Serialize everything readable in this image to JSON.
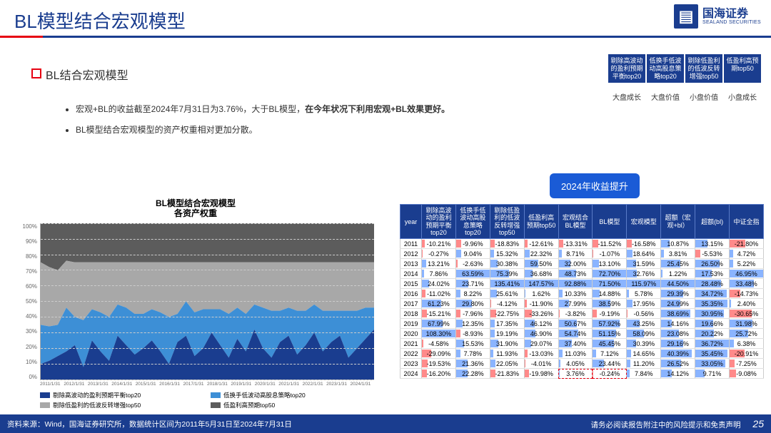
{
  "title": "BL模型结合宏观模型",
  "logo": {
    "cn": "国海证券",
    "en": "SEALAND SECURITIES",
    "icon": "卐"
  },
  "section_heading": "BL结合宏观模型",
  "bullets": [
    {
      "pre": "宏观+BL的收益截至2024年7月31日为3.76%，大于BL模型，",
      "bold": "在今年状况下利用宏观+BL效果更好。"
    },
    {
      "pre": "BL模型结合宏观模型的资产权重相对更加分散。",
      "bold": ""
    }
  ],
  "top_boxes": [
    "剔除高波动的盈利预期平衡top20",
    "低换手低波动高股息策略top20",
    "剔除低盈利的低波反转增强top50",
    "低盈利高预期top50"
  ],
  "top_labels": [
    "大盘成长",
    "大盘价值",
    "小盘价值",
    "小盘成长"
  ],
  "tag": "2024年收益提升",
  "chart": {
    "title_line1": "BL模型结合宏观模型",
    "title_line2": "各资产权重",
    "yticks": [
      "100%",
      "90%",
      "80%",
      "70%",
      "60%",
      "50%",
      "40%",
      "30%",
      "20%",
      "10%",
      "0%"
    ],
    "xticks": [
      "2011/1/31",
      "2012/1/31",
      "2013/1/31",
      "2014/1/31",
      "2015/1/31",
      "2016/1/31",
      "2017/1/31",
      "2018/1/31",
      "2019/1/31",
      "2020/1/31",
      "2021/1/31",
      "2022/1/31",
      "2023/1/31",
      "2024/1/31"
    ],
    "legend": [
      {
        "label": "剔除高波动的盈利预期平衡top20",
        "color": "#1a3d8f"
      },
      {
        "label": "低换手低波动高股息策略top20",
        "color": "#3d8fd6"
      },
      {
        "label": "剔除低盈利的低波反转增强top50",
        "color": "#a8a8a8"
      },
      {
        "label": "低盈利高预期top50",
        "color": "#5c5c5c"
      }
    ],
    "series_colors": [
      "#1a3d8f",
      "#3d8fd6",
      "#a8a8a8",
      "#5c5c5c"
    ],
    "stacks": [
      [
        10,
        25,
        40,
        25
      ],
      [
        12,
        22,
        38,
        28
      ],
      [
        15,
        20,
        35,
        30
      ],
      [
        18,
        28,
        30,
        24
      ],
      [
        22,
        18,
        35,
        25
      ],
      [
        8,
        30,
        37,
        25
      ],
      [
        25,
        20,
        30,
        25
      ],
      [
        18,
        25,
        32,
        25
      ],
      [
        12,
        28,
        35,
        25
      ],
      [
        28,
        20,
        27,
        25
      ],
      [
        22,
        24,
        29,
        25
      ],
      [
        16,
        26,
        33,
        25
      ],
      [
        20,
        22,
        33,
        25
      ],
      [
        25,
        20,
        30,
        25
      ],
      [
        18,
        25,
        32,
        25
      ],
      [
        10,
        30,
        35,
        25
      ],
      [
        24,
        18,
        33,
        25
      ],
      [
        28,
        22,
        25,
        25
      ],
      [
        15,
        28,
        32,
        25
      ],
      [
        20,
        25,
        30,
        25
      ],
      [
        30,
        15,
        30,
        25
      ],
      [
        22,
        23,
        30,
        25
      ],
      [
        14,
        28,
        33,
        25
      ],
      [
        26,
        20,
        29,
        25
      ],
      [
        18,
        24,
        33,
        25
      ],
      [
        32,
        16,
        27,
        25
      ],
      [
        20,
        26,
        29,
        25
      ],
      [
        14,
        30,
        31,
        25
      ],
      [
        24,
        20,
        31,
        25
      ],
      [
        28,
        18,
        29,
        25
      ],
      [
        16,
        28,
        31,
        25
      ],
      [
        22,
        22,
        31,
        25
      ],
      [
        30,
        18,
        27,
        25
      ],
      [
        18,
        26,
        31,
        25
      ],
      [
        24,
        20,
        31,
        25
      ],
      [
        28,
        16,
        31,
        25
      ],
      [
        14,
        30,
        31,
        25
      ],
      [
        20,
        24,
        31,
        25
      ],
      [
        26,
        20,
        29,
        25
      ],
      [
        32,
        14,
        29,
        25
      ]
    ]
  },
  "table": {
    "headers": [
      "year",
      "剔除高波动的盈利预期平衡top20",
      "低换手低波动高股息策略top20",
      "剔除低盈利的低波反转增强top50",
      "低盈利高预期top50",
      "宏观结合BL模型",
      "BL模型",
      "宏观模型",
      "超额（宏观+bl）",
      "超额(bl)",
      "中证全指"
    ],
    "rows": [
      [
        "2011",
        "-10.21%",
        "-9.96%",
        "-18.83%",
        "-12.61%",
        "-13.31%",
        "-11.52%",
        "-16.58%",
        "10.87%",
        "13.15%",
        "-21.80%"
      ],
      [
        "2012",
        "-0.27%",
        "9.04%",
        "15.32%",
        "22.32%",
        "8.71%",
        "-1.07%",
        "18.64%",
        "3.81%",
        "-5.53%",
        "4.72%"
      ],
      [
        "2013",
        "13.21%",
        "-2.63%",
        "30.38%",
        "59.50%",
        "32.00%",
        "13.10%",
        "31.59%",
        "25.45%",
        "26.50%",
        "5.22%"
      ],
      [
        "2014",
        "7.86%",
        "63.59%",
        "75.39%",
        "36.68%",
        "48.73%",
        "72.70%",
        "32.76%",
        "1.22%",
        "17.53%",
        "46.95%"
      ],
      [
        "2015",
        "24.02%",
        "23.71%",
        "135.41%",
        "147.57%",
        "92.88%",
        "71.50%",
        "115.97%",
        "44.50%",
        "28.48%",
        "33.48%"
      ],
      [
        "2016",
        "-11.02%",
        "8.22%",
        "25.61%",
        "1.62%",
        "10.33%",
        "14.88%",
        "5.78%",
        "29.39%",
        "34.72%",
        "-14.73%"
      ],
      [
        "2017",
        "61.23%",
        "29.80%",
        "-4.12%",
        "-11.90%",
        "27.99%",
        "38.59%",
        "17.95%",
        "24.99%",
        "35.35%",
        "2.40%"
      ],
      [
        "2018",
        "-15.21%",
        "-7.96%",
        "-22.75%",
        "-33.26%",
        "-3.82%",
        "-9.19%",
        "-0.56%",
        "38.69%",
        "30.95%",
        "-30.65%"
      ],
      [
        "2019",
        "67.99%",
        "12.35%",
        "17.35%",
        "46.12%",
        "50.67%",
        "57.92%",
        "43.25%",
        "14.16%",
        "19.66%",
        "31.98%"
      ],
      [
        "2020",
        "108.30%",
        "-8.93%",
        "19.19%",
        "46.90%",
        "54.74%",
        "51.15%",
        "58.09%",
        "23.08%",
        "20.22%",
        "25.72%"
      ],
      [
        "2021",
        "-4.58%",
        "15.53%",
        "31.90%",
        "29.07%",
        "37.40%",
        "45.45%",
        "30.39%",
        "29.16%",
        "36.72%",
        "6.38%"
      ],
      [
        "2022",
        "-29.09%",
        "7.78%",
        "11.93%",
        "-13.03%",
        "11.03%",
        "7.12%",
        "14.65%",
        "40.39%",
        "35.45%",
        "-20.91%"
      ],
      [
        "2023",
        "-19.53%",
        "21.36%",
        "22.05%",
        "-4.01%",
        "4.05%",
        "23.44%",
        "11.20%",
        "26.52%",
        "33.05%",
        "-7.25%"
      ],
      [
        "2024",
        "-16.20%",
        "22.28%",
        "-21.83%",
        "-19.98%",
        "3.76%",
        "-0.24%",
        "7.84%",
        "14.12%",
        "9.71%",
        "-9.08%"
      ]
    ],
    "highlight_row": 13,
    "highlight_cols": [
      5,
      6
    ]
  },
  "footer": {
    "left": "资料来源：Wind，国海证券研究所，数据统计区间为2011年5月31日至2024年7月31日",
    "right": "请务必阅读报告附注中的风险提示和免责声明",
    "page": "25"
  }
}
